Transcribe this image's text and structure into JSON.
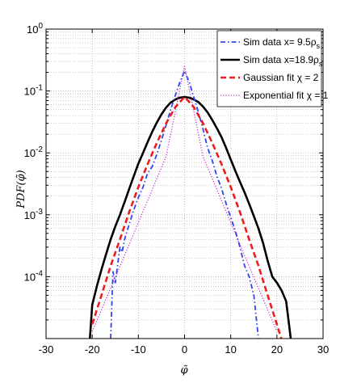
{
  "chart_data": {
    "type": "line",
    "title": "",
    "xlabel": "φ̃",
    "ylabel": "PDF(φ̃)",
    "xlim": [
      -30,
      30
    ],
    "ylim": [
      1e-05,
      1
    ],
    "yscale": "log",
    "grid": true,
    "legend_position": "top-right",
    "x_ticks": [
      -30,
      -20,
      -10,
      0,
      10,
      20,
      30
    ],
    "x_tick_labels": [
      "-30",
      "-20",
      "-10",
      "0",
      "10",
      "20",
      "30"
    ],
    "y_ticks": [
      0.0001,
      0.001,
      0.01,
      0.1,
      1
    ],
    "y_tick_labels": [
      {
        "base": "10",
        "exp": "-4"
      },
      {
        "base": "10",
        "exp": "-3"
      },
      {
        "base": "10",
        "exp": "-2"
      },
      {
        "base": "10",
        "exp": "-1"
      },
      {
        "base": "10",
        "exp": "0"
      }
    ],
    "series": [
      {
        "name": "Sim data x= 9.5ρ",
        "name_sub": "s",
        "color": "#3344ee",
        "style": "dashdot",
        "x": [
          -16,
          -15.5,
          -15,
          -14,
          -13.5,
          -13,
          -12,
          -11,
          -10,
          -9,
          -8,
          -7,
          -6,
          -5,
          -4,
          -3,
          -2,
          -1,
          0,
          1,
          2,
          3,
          4,
          5,
          6,
          7,
          8,
          9,
          10,
          11,
          12,
          13,
          14,
          15,
          16
        ],
        "y": [
          1e-05,
          0.00012,
          8e-05,
          0.0003,
          0.00025,
          0.0004,
          0.0007,
          0.0012,
          0.0019,
          0.0028,
          0.0047,
          0.006,
          0.0095,
          0.016,
          0.028,
          0.05,
          0.085,
          0.14,
          0.21,
          0.14,
          0.08,
          0.045,
          0.024,
          0.012,
          0.0075,
          0.0042,
          0.0027,
          0.0015,
          0.0009,
          0.00055,
          0.0003,
          0.00015,
          0.0001,
          5e-05,
          1e-05
        ]
      },
      {
        "name": "Sim data x=18.9ρ",
        "name_sub": "s",
        "color": "#000000",
        "style": "solid",
        "x": [
          -20.5,
          -20,
          -19,
          -18,
          -17,
          -16,
          -15,
          -14,
          -13,
          -12,
          -11,
          -10,
          -9,
          -8,
          -7,
          -6,
          -5,
          -4,
          -3,
          -2,
          -1,
          0,
          1,
          2,
          3,
          4,
          5,
          6,
          7,
          8,
          9,
          10,
          11,
          12,
          13,
          14,
          15,
          16,
          17,
          18,
          19,
          20,
          21,
          22,
          23
        ],
        "y": [
          1e-05,
          3.5e-05,
          7e-05,
          0.00013,
          0.00023,
          0.0004,
          0.00065,
          0.001,
          0.0016,
          0.0026,
          0.0042,
          0.0067,
          0.01,
          0.015,
          0.022,
          0.031,
          0.042,
          0.054,
          0.065,
          0.073,
          0.078,
          0.08,
          0.078,
          0.073,
          0.066,
          0.056,
          0.045,
          0.034,
          0.025,
          0.018,
          0.012,
          0.0078,
          0.0051,
          0.0034,
          0.0023,
          0.0015,
          0.00095,
          0.0006,
          0.00035,
          0.00018,
          0.0001,
          8e-05,
          6e-05,
          4e-05,
          1e-05
        ]
      },
      {
        "name": "Gaussian fit χ = 2",
        "name_sub": "",
        "color": "#ee1c1c",
        "style": "dashed",
        "x": [
          -20,
          -18,
          -16,
          -14,
          -12,
          -10,
          -8,
          -6,
          -4,
          -2,
          0,
          2,
          4,
          6,
          8,
          10,
          12,
          14,
          16,
          18,
          20,
          22
        ],
        "y": [
          1.7e-05,
          5e-05,
          0.00015,
          0.0004,
          0.0011,
          0.0028,
          0.0066,
          0.0145,
          0.03,
          0.055,
          0.08,
          0.055,
          0.03,
          0.0145,
          0.0066,
          0.0028,
          0.0011,
          0.0004,
          0.00015,
          5e-05,
          1.7e-05,
          5.5e-06
        ]
      },
      {
        "name": "Exponential fit χ = 1",
        "name_sub": "",
        "color": "#cc33cc",
        "style": "dotted",
        "x": [
          -20,
          -16,
          -12,
          -8,
          -4,
          0,
          4,
          8,
          12,
          16,
          20
        ],
        "y": [
          1.3e-05,
          6.5e-05,
          0.00033,
          0.0017,
          0.0087,
          0.25,
          0.0087,
          0.0017,
          0.00033,
          6.5e-05,
          1.3e-05
        ]
      }
    ]
  }
}
